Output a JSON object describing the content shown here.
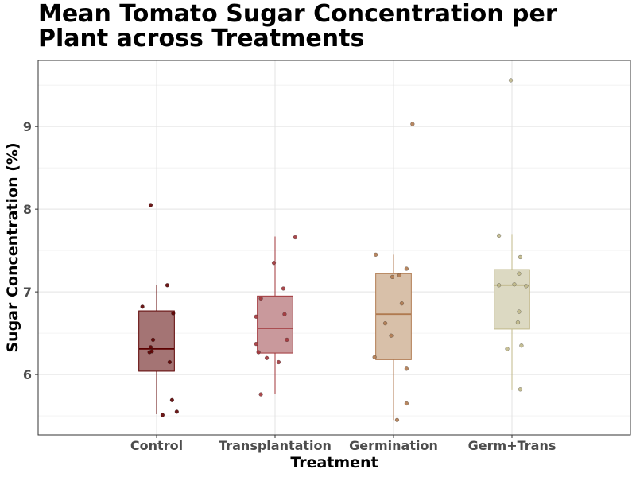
{
  "chart_data": {
    "type": "box",
    "title_lines": [
      "Mean Tomato Sugar Concentration per",
      "Plant across Treatments"
    ],
    "xlabel": "Treatment",
    "ylabel": "Sugar Concentration (%)",
    "ylim": [
      5.27,
      9.8
    ],
    "yticks": [
      6,
      7,
      8,
      9
    ],
    "grid": true,
    "categories": [
      "Control",
      "Transplantation",
      "Germination",
      "Germ+Trans"
    ],
    "colors": [
      "#5c0000",
      "#a0353a",
      "#b07a50",
      "#c0b88a"
    ],
    "fills": [
      "#a47474",
      "#c9999c",
      "#d8c0a9",
      "#dcd9c2"
    ],
    "boxes": [
      {
        "category": "Control",
        "whisker_low": 5.52,
        "q1": 6.04,
        "median": 6.31,
        "q3": 6.77,
        "whisker_high": 7.08,
        "points": [
          {
            "jitter": -0.05,
            "y": 8.05
          },
          {
            "jitter": 0.09,
            "y": 7.08
          },
          {
            "jitter": -0.12,
            "y": 6.82
          },
          {
            "jitter": 0.14,
            "y": 6.74
          },
          {
            "jitter": -0.03,
            "y": 6.42
          },
          {
            "jitter": -0.05,
            "y": 6.33
          },
          {
            "jitter": -0.06,
            "y": 6.27
          },
          {
            "jitter": -0.04,
            "y": 6.28
          },
          {
            "jitter": 0.11,
            "y": 6.15
          },
          {
            "jitter": 0.13,
            "y": 5.69
          },
          {
            "jitter": 0.17,
            "y": 5.55
          },
          {
            "jitter": 0.05,
            "y": 5.51
          }
        ]
      },
      {
        "category": "Transplantation",
        "whisker_low": 5.76,
        "q1": 6.26,
        "median": 6.56,
        "q3": 6.95,
        "whisker_high": 7.67,
        "points": [
          {
            "jitter": 0.17,
            "y": 7.66
          },
          {
            "jitter": -0.01,
            "y": 7.35
          },
          {
            "jitter": 0.07,
            "y": 7.04
          },
          {
            "jitter": -0.12,
            "y": 6.92
          },
          {
            "jitter": 0.08,
            "y": 6.73
          },
          {
            "jitter": -0.16,
            "y": 6.7
          },
          {
            "jitter": 0.1,
            "y": 6.42
          },
          {
            "jitter": -0.16,
            "y": 6.37
          },
          {
            "jitter": -0.14,
            "y": 6.27
          },
          {
            "jitter": -0.07,
            "y": 6.2
          },
          {
            "jitter": 0.03,
            "y": 6.15
          },
          {
            "jitter": -0.12,
            "y": 5.76
          }
        ]
      },
      {
        "category": "Germination",
        "whisker_low": 5.45,
        "q1": 6.18,
        "median": 6.73,
        "q3": 7.22,
        "whisker_high": 7.45,
        "points": [
          {
            "jitter": 0.16,
            "y": 9.03
          },
          {
            "jitter": -0.15,
            "y": 7.45
          },
          {
            "jitter": 0.11,
            "y": 7.28
          },
          {
            "jitter": 0.05,
            "y": 7.2
          },
          {
            "jitter": -0.01,
            "y": 7.18
          },
          {
            "jitter": 0.07,
            "y": 6.86
          },
          {
            "jitter": -0.07,
            "y": 6.62
          },
          {
            "jitter": -0.02,
            "y": 6.47
          },
          {
            "jitter": -0.16,
            "y": 6.21
          },
          {
            "jitter": 0.11,
            "y": 6.07
          },
          {
            "jitter": 0.11,
            "y": 5.65
          },
          {
            "jitter": 0.03,
            "y": 5.45
          }
        ]
      },
      {
        "category": "Germ+Trans",
        "whisker_low": 5.82,
        "q1": 6.55,
        "median": 7.08,
        "q3": 7.27,
        "whisker_high": 7.7,
        "points": [
          {
            "jitter": -0.01,
            "y": 9.56
          },
          {
            "jitter": -0.11,
            "y": 7.68
          },
          {
            "jitter": 0.07,
            "y": 7.42
          },
          {
            "jitter": 0.06,
            "y": 7.22
          },
          {
            "jitter": -0.11,
            "y": 7.08
          },
          {
            "jitter": 0.02,
            "y": 7.09
          },
          {
            "jitter": 0.12,
            "y": 7.07
          },
          {
            "jitter": 0.06,
            "y": 6.76
          },
          {
            "jitter": 0.05,
            "y": 6.63
          },
          {
            "jitter": 0.08,
            "y": 6.35
          },
          {
            "jitter": -0.04,
            "y": 6.31
          },
          {
            "jitter": 0.07,
            "y": 5.82
          }
        ]
      }
    ]
  }
}
